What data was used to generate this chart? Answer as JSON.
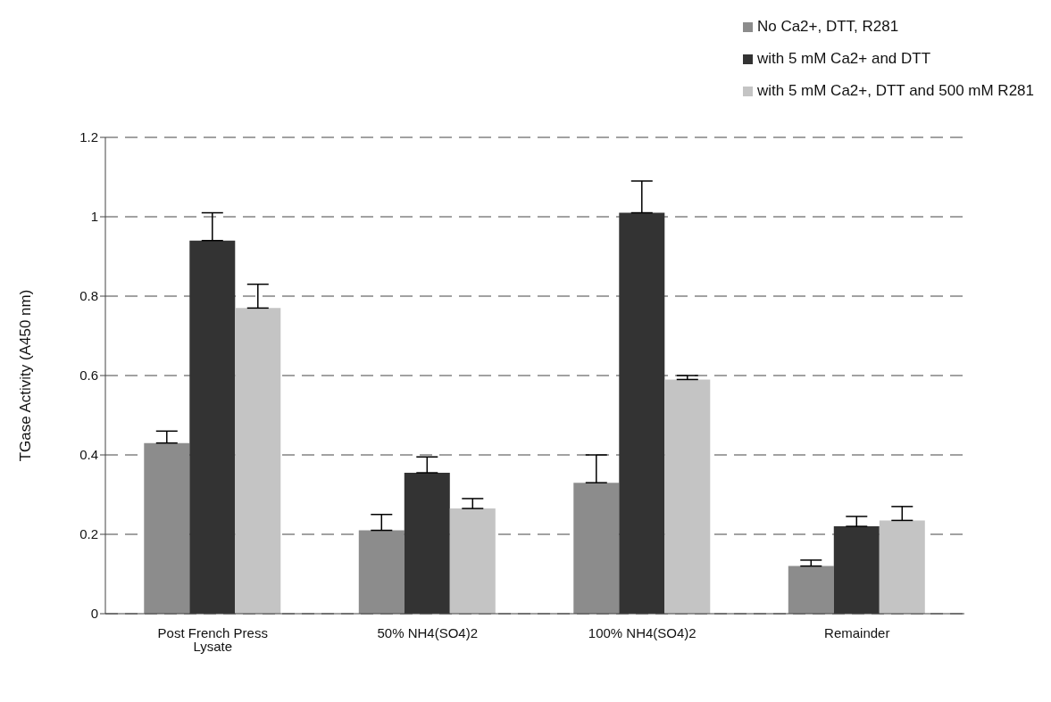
{
  "chart_data": {
    "type": "bar",
    "ylabel": "TGase Activity (A450 nm)",
    "categories": [
      "Post French Press Lysate",
      "50% NH4(SO4)2",
      "100% NH4(SO4)2",
      "Remainder"
    ],
    "series": [
      {
        "name": "No Ca2+, DTT, R281",
        "color": "#8c8c8c",
        "values": [
          0.43,
          0.21,
          0.33,
          0.12
        ],
        "errors": [
          [
            0.43,
            0.46
          ],
          [
            0.21,
            0.25
          ],
          [
            0.33,
            0.4
          ],
          [
            0.12,
            0.135
          ]
        ]
      },
      {
        "name": "with 5 mM Ca2+ and DTT",
        "color": "#333333",
        "values": [
          0.94,
          0.355,
          1.01,
          0.22
        ],
        "errors": [
          [
            0.94,
            1.01
          ],
          [
            0.355,
            0.395
          ],
          [
            1.01,
            1.09
          ],
          [
            0.22,
            0.245
          ]
        ]
      },
      {
        "name": "with 5 mM Ca2+, DTT and 500 mM R281",
        "color": "#c4c4c4",
        "values": [
          0.77,
          0.265,
          0.59,
          0.235
        ],
        "errors": [
          [
            0.77,
            0.83
          ],
          [
            0.265,
            0.29
          ],
          [
            0.59,
            0.6
          ],
          [
            0.235,
            0.27
          ]
        ]
      }
    ],
    "ylim": [
      0,
      1.2
    ],
    "yticks": [
      0,
      0.2,
      0.4,
      0.6,
      0.8,
      1,
      1.2
    ],
    "grid": "y",
    "legend": "top right"
  }
}
